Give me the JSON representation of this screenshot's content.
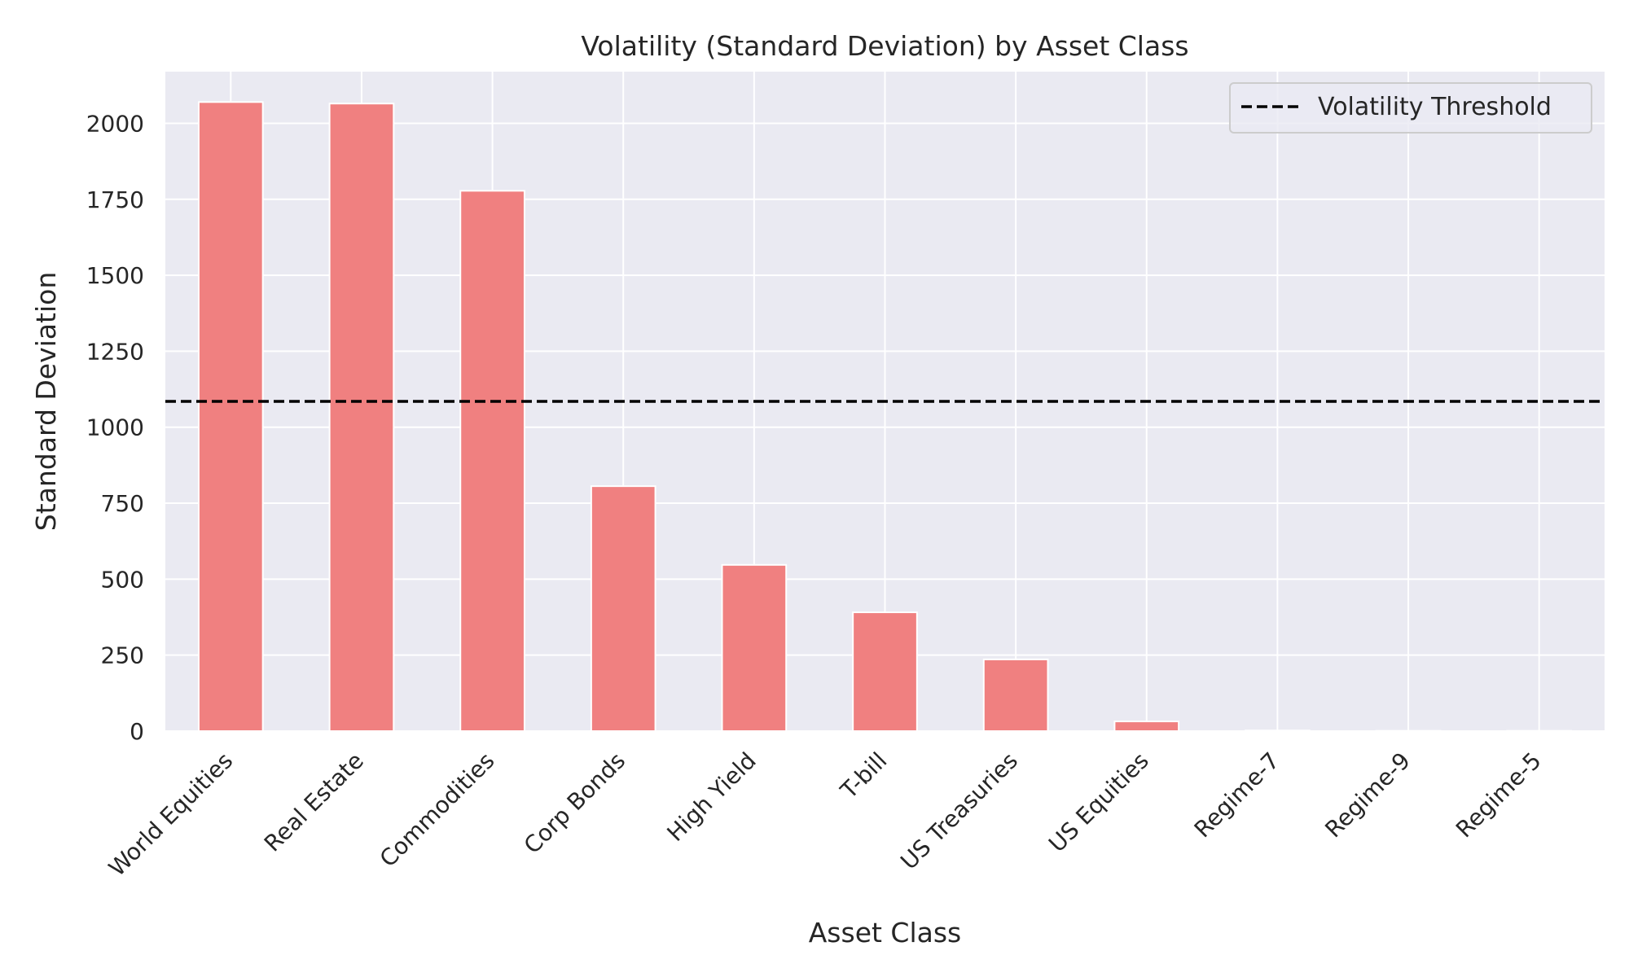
{
  "chart_data": {
    "type": "bar",
    "title": "Volatility (Standard Deviation) by Asset Class",
    "xlabel": "Asset Class",
    "ylabel": "Standard Deviation",
    "categories": [
      "World Equities",
      "Real Estate",
      "Commodities",
      "Corp Bonds",
      "High Yield",
      "T-bill",
      "US Treasuries",
      "US Equities",
      "Regime-7",
      "Regime-9",
      "Regime-5"
    ],
    "values": [
      2070,
      2065,
      1778,
      806,
      547,
      391,
      236,
      32,
      2,
      1,
      1
    ],
    "ylim": [
      0,
      2170
    ],
    "yticks": [
      0,
      250,
      500,
      750,
      1000,
      1250,
      1500,
      1750,
      2000
    ],
    "threshold": {
      "value": 1085,
      "label": "Volatility Threshold"
    },
    "bar_color": "#f08080",
    "background_color": "#eaeaf2",
    "grid": true,
    "legend_position": "top-right"
  }
}
